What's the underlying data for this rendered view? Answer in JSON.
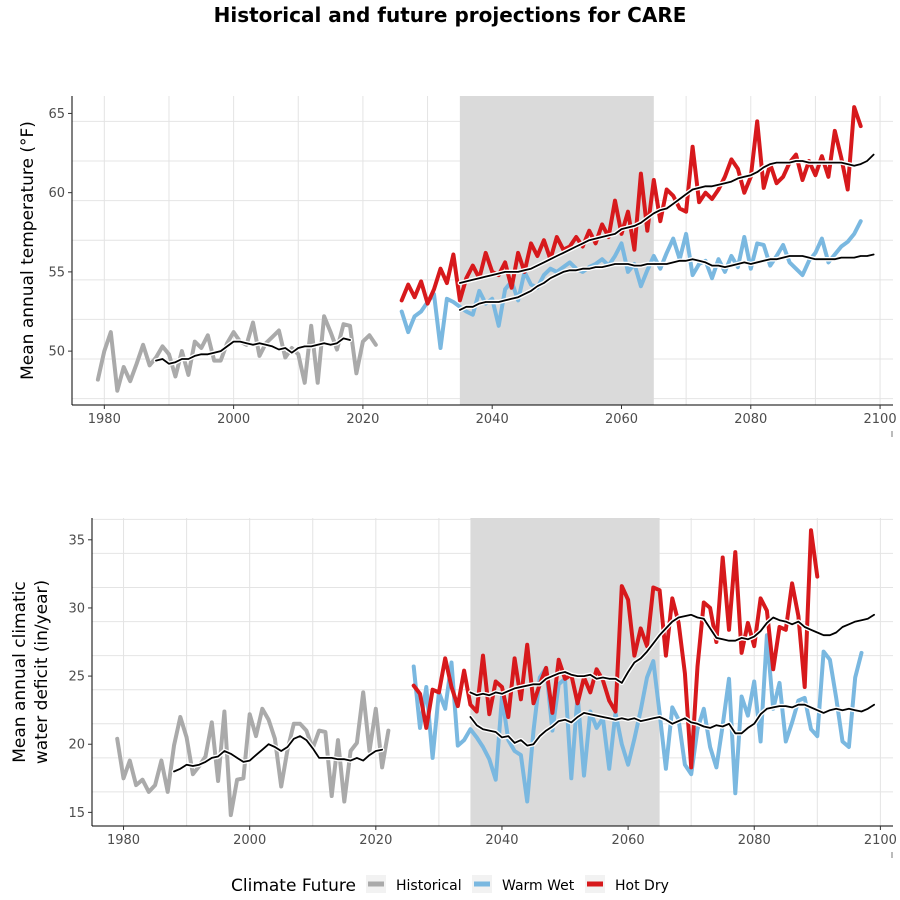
{
  "title": "Historical and future projections for CARE",
  "legend": {
    "title": "Climate Future",
    "items": [
      {
        "label": "Historical",
        "color": "#aaaaaa"
      },
      {
        "label": "Warm Wet",
        "color": "#7ab8e0"
      },
      {
        "label": "Hot Dry",
        "color": "#d7191c"
      }
    ]
  },
  "colors": {
    "historical": "#aaaaaa",
    "warm_wet": "#7ab8e0",
    "hot_dry": "#d7191c",
    "shade": "#dadada",
    "smooth": "#000000"
  },
  "chart_data": [
    {
      "type": "line",
      "ylabel": "Mean annual temperature (°F)",
      "xlim": [
        1975,
        2102
      ],
      "ylim": [
        46.6,
        66.1
      ],
      "xticks": [
        1980,
        2000,
        2020,
        2040,
        2060,
        2080,
        2100
      ],
      "yticks": [
        50,
        55,
        60,
        65
      ],
      "grid": true,
      "shaded_period": [
        2035,
        2065
      ],
      "series": [
        {
          "name": "Historical",
          "key": "historical",
          "x_start": 1979,
          "values": [
            48.2,
            50.0,
            51.2,
            47.5,
            49.0,
            48.1,
            49.2,
            50.4,
            49.1,
            49.6,
            50.3,
            49.8,
            48.4,
            50.0,
            48.5,
            50.6,
            50.2,
            51.0,
            49.4,
            49.4,
            50.5,
            51.2,
            50.6,
            50.4,
            51.8,
            49.7,
            50.5,
            50.9,
            51.3,
            49.6,
            50.2,
            49.8,
            48.0,
            51.6,
            48.0,
            52.2,
            51.2,
            50.1,
            51.7,
            51.6,
            48.6,
            50.6,
            51.0,
            50.4
          ]
        },
        {
          "name": "Warm Wet",
          "key": "warm_wet",
          "x_start": 2026,
          "values": [
            52.5,
            51.2,
            52.2,
            52.5,
            53.1,
            53.6,
            50.2,
            53.3,
            53.1,
            52.8,
            52.5,
            52.3,
            53.8,
            53.0,
            53.3,
            51.6,
            53.9,
            54.4,
            53.2,
            55.0,
            54.2,
            54.0,
            54.8,
            55.2,
            55.0,
            55.3,
            55.6,
            55.2,
            55.0,
            55.3,
            55.5,
            55.8,
            55.4,
            56.0,
            56.8,
            55.0,
            55.5,
            54.1,
            55.1,
            56.0,
            55.2,
            56.2,
            57.1,
            55.8,
            57.4,
            54.8,
            55.5,
            55.7,
            54.6,
            55.8,
            55.0,
            56.0,
            55.3,
            57.2,
            55.2,
            56.8,
            56.7,
            55.4,
            56.0,
            56.7,
            55.6,
            55.2,
            54.8,
            55.7,
            56.2,
            57.1,
            55.6,
            56.1,
            56.6,
            56.9,
            57.4,
            58.2
          ]
        },
        {
          "name": "Hot Dry",
          "key": "hot_dry",
          "x_start": 2026,
          "values": [
            53.2,
            54.2,
            53.4,
            54.4,
            53.0,
            53.9,
            55.2,
            54.3,
            56.1,
            53.2,
            54.6,
            55.4,
            54.6,
            56.2,
            55.0,
            54.8,
            55.6,
            54.0,
            56.2,
            55.0,
            56.8,
            56.0,
            57.0,
            55.8,
            57.2,
            56.4,
            56.6,
            57.2,
            56.6,
            57.6,
            56.8,
            58.0,
            57.2,
            59.5,
            57.4,
            58.8,
            56.4,
            61.2,
            57.6,
            60.8,
            58.2,
            60.2,
            59.8,
            59.0,
            58.8,
            62.9,
            59.4,
            60.0,
            59.6,
            60.2,
            61.0,
            62.1,
            61.5,
            60.0,
            61.0,
            64.5,
            60.3,
            61.8,
            60.6,
            61.0,
            61.9,
            62.4,
            60.8,
            62.0,
            61.1,
            62.3,
            61.0,
            63.9,
            62.2,
            60.2,
            65.4,
            64.2
          ]
        },
        {
          "name": "Historical smoothed",
          "key": "smooth",
          "x_start": 1988,
          "values": [
            49.4,
            49.5,
            49.2,
            49.3,
            49.5,
            49.5,
            49.7,
            49.8,
            49.8,
            49.9,
            50.0,
            50.3,
            50.6,
            50.6,
            50.5,
            50.4,
            50.5,
            50.4,
            50.3,
            50.1,
            50.2,
            49.9,
            50.2,
            50.3,
            50.3,
            50.4,
            50.5,
            50.4,
            50.5,
            50.8,
            50.7
          ]
        },
        {
          "name": "Warm Wet smoothed",
          "key": "smooth",
          "x_start": 2035,
          "values": [
            52.6,
            52.8,
            52.8,
            53.0,
            53.1,
            53.1,
            53.1,
            53.2,
            53.3,
            53.4,
            53.6,
            53.8,
            54.1,
            54.3,
            54.6,
            54.8,
            55.0,
            55.1,
            55.1,
            55.2,
            55.2,
            55.3,
            55.3,
            55.4,
            55.5,
            55.5,
            55.5,
            55.4,
            55.4,
            55.5,
            55.5,
            55.5,
            55.5,
            55.6,
            55.7,
            55.7,
            55.8,
            55.7,
            55.6,
            55.4,
            55.4,
            55.3,
            55.4,
            55.5,
            55.6,
            55.5,
            55.6,
            55.7,
            55.8,
            55.8,
            55.9,
            56.0,
            56.0,
            56.0,
            55.9,
            55.8,
            55.8,
            55.8,
            55.8,
            55.9,
            55.9,
            55.9,
            56.0,
            56.0,
            56.1
          ]
        },
        {
          "name": "Hot Dry smoothed",
          "key": "smooth",
          "x_start": 2035,
          "values": [
            54.3,
            54.4,
            54.5,
            54.6,
            54.7,
            54.8,
            54.9,
            55.0,
            55.0,
            55.0,
            55.1,
            55.2,
            55.4,
            55.6,
            55.8,
            56.0,
            56.2,
            56.4,
            56.6,
            56.8,
            57.0,
            57.1,
            57.2,
            57.3,
            57.4,
            57.7,
            57.8,
            57.9,
            58.1,
            58.4,
            58.7,
            58.9,
            59.0,
            59.3,
            59.6,
            59.9,
            60.2,
            60.3,
            60.4,
            60.4,
            60.5,
            60.6,
            60.7,
            60.9,
            61.0,
            61.1,
            61.3,
            61.6,
            61.8,
            61.9,
            61.9,
            61.9,
            62.0,
            62.0,
            61.9,
            61.9,
            61.9,
            61.9,
            61.9,
            61.9,
            61.8,
            61.7,
            61.8,
            62.0,
            62.4
          ]
        }
      ]
    },
    {
      "type": "line",
      "ylabel_lines": [
        "Mean annual climatic",
        "water deficit (in/year)"
      ],
      "xlim": [
        1975,
        2102
      ],
      "ylim": [
        14.0,
        36.6
      ],
      "xticks": [
        1980,
        2000,
        2020,
        2040,
        2060,
        2080,
        2100
      ],
      "yticks": [
        15,
        20,
        25,
        30,
        35
      ],
      "grid": true,
      "shaded_period": [
        2035,
        2065
      ],
      "series": [
        {
          "name": "Historical",
          "key": "historical",
          "x_start": 1979,
          "values": [
            20.4,
            17.5,
            18.8,
            17.0,
            17.4,
            16.5,
            17.0,
            18.8,
            16.5,
            19.9,
            22.0,
            20.5,
            17.8,
            18.4,
            19.1,
            21.6,
            17.3,
            22.4,
            14.8,
            17.4,
            17.5,
            22.2,
            20.6,
            22.6,
            21.8,
            20.4,
            16.9,
            19.6,
            21.5,
            21.5,
            21.0,
            19.7,
            21.0,
            20.9,
            16.2,
            20.3,
            15.8,
            19.5,
            20.1,
            23.8,
            19.5,
            22.6,
            18.3,
            21.0
          ]
        },
        {
          "name": "Warm Wet",
          "key": "warm_wet",
          "x_start": 2026,
          "values": [
            25.7,
            21.2,
            24.2,
            19.0,
            23.8,
            22.6,
            26.0,
            19.9,
            20.3,
            21.1,
            20.5,
            19.8,
            18.9,
            17.4,
            23.5,
            20.3,
            19.5,
            19.2,
            15.8,
            21.0,
            24.9,
            25.6,
            21.0,
            24.4,
            24.8,
            17.5,
            23.6,
            17.7,
            22.4,
            21.2,
            21.9,
            18.2,
            22.3,
            20.0,
            18.5,
            20.4,
            22.5,
            24.9,
            26.1,
            22.3,
            18.2,
            22.7,
            21.8,
            18.5,
            17.8,
            21.1,
            22.6,
            19.8,
            18.3,
            21.4,
            24.8,
            16.4,
            23.5,
            22.1,
            24.6,
            20.2,
            28.0,
            22.6,
            24.5,
            20.2,
            21.6,
            23.2,
            23.4,
            21.1,
            20.6,
            26.8,
            26.2,
            23.4,
            20.2,
            19.8,
            24.9,
            26.7
          ]
        },
        {
          "name": "Hot Dry",
          "key": "hot_dry",
          "x_start": 2026,
          "values": [
            24.3,
            23.7,
            21.2,
            24.0,
            23.8,
            26.3,
            24.2,
            22.8,
            25.4,
            22.9,
            22.4,
            26.5,
            22.2,
            24.6,
            24.2,
            22.0,
            26.3,
            23.3,
            27.3,
            23.0,
            24.4,
            25.6,
            22.3,
            26.2,
            24.8,
            25.1,
            23.0,
            24.9,
            23.8,
            25.5,
            24.7,
            23.2,
            22.4,
            31.6,
            30.6,
            26.5,
            28.5,
            27.2,
            31.5,
            31.3,
            26.5,
            30.7,
            28.9,
            25.2,
            18.3,
            25.7,
            30.4,
            30.0,
            27.5,
            33.7,
            28.4,
            34.1,
            26.7,
            28.9,
            27.2,
            30.7,
            29.8,
            25.5,
            28.6,
            28.4,
            31.8,
            29.4,
            24.2,
            35.7,
            32.3
          ]
        },
        {
          "name": "Historical smoothed",
          "key": "smooth",
          "x_start": 1988,
          "values": [
            18.0,
            18.2,
            18.5,
            18.4,
            18.5,
            18.7,
            19.0,
            19.1,
            19.5,
            19.3,
            19.0,
            18.7,
            18.8,
            19.2,
            19.6,
            20.0,
            19.8,
            19.5,
            19.8,
            20.4,
            20.6,
            20.3,
            19.7,
            19.0,
            19.0,
            19.0,
            18.9,
            18.9,
            18.8,
            19.0,
            18.8,
            19.2,
            19.5,
            19.6
          ]
        },
        {
          "name": "Warm Wet smoothed",
          "key": "smooth",
          "x_start": 2035,
          "values": [
            22.0,
            21.4,
            21.1,
            21.0,
            20.9,
            20.5,
            20.6,
            20.1,
            20.3,
            19.9,
            20.0,
            20.6,
            21.0,
            21.3,
            21.7,
            21.8,
            21.6,
            22.0,
            22.3,
            22.2,
            22.1,
            22.0,
            21.9,
            21.8,
            21.9,
            21.8,
            21.9,
            21.7,
            21.8,
            21.9,
            22.0,
            21.8,
            21.5,
            21.7,
            21.9,
            21.6,
            21.5,
            21.3,
            21.2,
            21.4,
            21.3,
            21.5,
            20.8,
            20.8,
            21.2,
            21.5,
            22.2,
            22.6,
            22.7,
            22.8,
            22.8,
            22.7,
            22.9,
            22.9,
            22.7,
            22.5,
            22.3,
            22.5,
            22.6,
            22.5,
            22.6,
            22.5,
            22.4,
            22.6,
            22.9
          ]
        },
        {
          "name": "Hot Dry smoothed",
          "key": "smooth",
          "x_start": 2035,
          "values": [
            23.8,
            23.6,
            23.7,
            23.6,
            23.8,
            23.7,
            23.9,
            24.1,
            24.2,
            24.3,
            24.4,
            24.4,
            24.8,
            25.0,
            25.2,
            25.3,
            25.1,
            25.0,
            25.0,
            25.1,
            24.8,
            24.9,
            24.8,
            24.8,
            24.5,
            25.3,
            26.0,
            26.3,
            26.8,
            27.4,
            28.0,
            28.5,
            29.0,
            29.3,
            29.4,
            29.5,
            29.3,
            29.2,
            28.5,
            27.8,
            27.7,
            27.6,
            27.6,
            27.8,
            27.7,
            27.9,
            28.3,
            28.9,
            29.3,
            29.1,
            29.0,
            28.8,
            29.0,
            28.6,
            28.4,
            28.2,
            28.0,
            28.0,
            28.2,
            28.6,
            28.8,
            29.0,
            29.1,
            29.2,
            29.5
          ]
        }
      ]
    }
  ]
}
